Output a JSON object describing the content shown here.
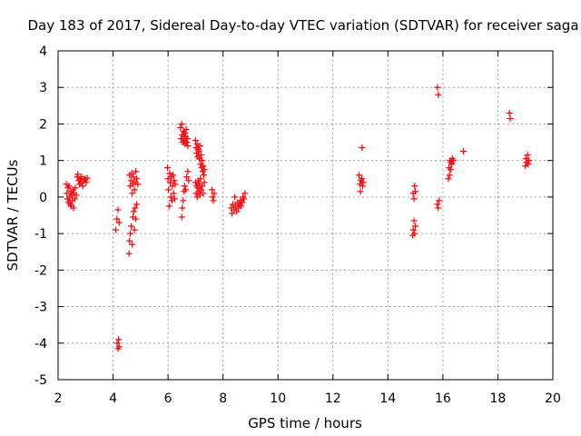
{
  "chart_data": {
    "type": "scatter",
    "title": "Day 183 of 2017, Sidereal Day-to-day VTEC variation (SDTVAR) for receiver saga",
    "xlabel": "GPS time / hours",
    "ylabel": "SDTVAR / TECUs",
    "xlim": [
      2,
      20
    ],
    "ylim": [
      -5,
      4
    ],
    "xticks": [
      2,
      4,
      6,
      8,
      10,
      12,
      14,
      16,
      18,
      20
    ],
    "yticks": [
      -5,
      -4,
      -3,
      -2,
      -1,
      0,
      1,
      2,
      3,
      4
    ],
    "xtick_labels": [
      "2",
      "4",
      "6",
      "8",
      "10",
      "12",
      "14",
      "16",
      "18",
      "20"
    ],
    "ytick_labels": [
      "-5",
      "-4",
      "-3",
      "-2",
      "-1",
      "0",
      "1",
      "2",
      "3",
      "4"
    ],
    "grid": true,
    "marker": "+",
    "color": "#ff0000",
    "series": [
      {
        "name": "SDTVAR",
        "points": [
          [
            2.3,
            0.35
          ],
          [
            2.32,
            0.1
          ],
          [
            2.34,
            -0.05
          ],
          [
            2.36,
            0.25
          ],
          [
            2.38,
            -0.15
          ],
          [
            2.4,
            0.3
          ],
          [
            2.42,
            0.0
          ],
          [
            2.44,
            -0.2
          ],
          [
            2.46,
            0.15
          ],
          [
            2.48,
            -0.25
          ],
          [
            2.5,
            0.05
          ],
          [
            2.52,
            -0.1
          ],
          [
            2.54,
            0.2
          ],
          [
            2.56,
            -0.3
          ],
          [
            2.58,
            0.1
          ],
          [
            2.6,
            -0.05
          ],
          [
            2.62,
            0.25
          ],
          [
            2.66,
            0.05
          ],
          [
            2.7,
            0.55
          ],
          [
            2.72,
            0.62
          ],
          [
            2.75,
            0.45
          ],
          [
            2.78,
            0.35
          ],
          [
            2.8,
            0.5
          ],
          [
            2.83,
            0.4
          ],
          [
            2.86,
            0.55
          ],
          [
            2.9,
            0.3
          ],
          [
            2.94,
            0.45
          ],
          [
            2.98,
            0.5
          ],
          [
            3.02,
            0.4
          ],
          [
            3.06,
            0.52
          ],
          [
            4.1,
            -0.9
          ],
          [
            4.14,
            -0.6
          ],
          [
            4.18,
            -0.35
          ],
          [
            4.22,
            -0.7
          ],
          [
            4.15,
            -4.0
          ],
          [
            4.18,
            -4.15
          ],
          [
            4.2,
            -3.9
          ],
          [
            4.22,
            -4.1
          ],
          [
            4.58,
            -1.55
          ],
          [
            4.6,
            -1.2
          ],
          [
            4.63,
            -1.0
          ],
          [
            4.66,
            -0.8
          ],
          [
            4.7,
            -1.3
          ],
          [
            4.72,
            -0.55
          ],
          [
            4.75,
            -0.4
          ],
          [
            4.78,
            -0.9
          ],
          [
            4.8,
            -0.3
          ],
          [
            4.83,
            -0.6
          ],
          [
            4.86,
            -0.2
          ],
          [
            4.6,
            0.6
          ],
          [
            4.62,
            0.3
          ],
          [
            4.65,
            0.45
          ],
          [
            4.68,
            0.65
          ],
          [
            4.7,
            0.1
          ],
          [
            4.72,
            0.35
          ],
          [
            4.75,
            0.55
          ],
          [
            4.78,
            0.2
          ],
          [
            4.8,
            0.4
          ],
          [
            4.83,
            0.7
          ],
          [
            4.86,
            0.5
          ],
          [
            4.9,
            0.35
          ],
          [
            5.98,
            0.8
          ],
          [
            6.0,
            0.5
          ],
          [
            6.02,
            0.2
          ],
          [
            6.04,
            -0.25
          ],
          [
            6.06,
            0.65
          ],
          [
            6.08,
            0.4
          ],
          [
            6.1,
            0.0
          ],
          [
            6.12,
            0.55
          ],
          [
            6.14,
            -0.1
          ],
          [
            6.16,
            0.3
          ],
          [
            6.18,
            0.6
          ],
          [
            6.2,
            0.1
          ],
          [
            6.22,
            0.45
          ],
          [
            6.24,
            -0.05
          ],
          [
            6.26,
            0.35
          ],
          [
            6.45,
            1.9
          ],
          [
            6.48,
            1.6
          ],
          [
            6.5,
            2.0
          ],
          [
            6.52,
            1.7
          ],
          [
            6.54,
            1.5
          ],
          [
            6.56,
            1.8
          ],
          [
            6.58,
            1.55
          ],
          [
            6.6,
            1.75
          ],
          [
            6.62,
            1.45
          ],
          [
            6.64,
            1.65
          ],
          [
            6.66,
            1.85
          ],
          [
            6.68,
            1.5
          ],
          [
            6.7,
            1.6
          ],
          [
            6.72,
            1.4
          ],
          [
            6.5,
            -0.55
          ],
          [
            6.52,
            -0.3
          ],
          [
            6.55,
            -0.1
          ],
          [
            6.58,
            0.15
          ],
          [
            6.6,
            0.3
          ],
          [
            6.64,
            0.2
          ],
          [
            6.68,
            0.55
          ],
          [
            6.72,
            0.7
          ],
          [
            6.75,
            0.45
          ],
          [
            7.0,
            1.55
          ],
          [
            7.02,
            1.35
          ],
          [
            7.04,
            1.2
          ],
          [
            7.06,
            1.45
          ],
          [
            7.08,
            1.1
          ],
          [
            7.1,
            1.3
          ],
          [
            7.12,
            1.25
          ],
          [
            7.14,
            1.05
          ],
          [
            7.16,
            1.4
          ],
          [
            7.18,
            0.9
          ],
          [
            7.2,
            1.15
          ],
          [
            7.22,
            0.8
          ],
          [
            7.24,
            1.0
          ],
          [
            7.26,
            0.7
          ],
          [
            7.28,
            0.85
          ],
          [
            7.3,
            0.6
          ],
          [
            7.32,
            0.75
          ],
          [
            7.0,
            0.4
          ],
          [
            7.02,
            0.1
          ],
          [
            7.04,
            0.3
          ],
          [
            7.06,
            0.0
          ],
          [
            7.08,
            0.25
          ],
          [
            7.1,
            0.45
          ],
          [
            7.12,
            0.15
          ],
          [
            7.14,
            0.35
          ],
          [
            7.16,
            0.05
          ],
          [
            7.18,
            0.5
          ],
          [
            7.2,
            0.2
          ],
          [
            7.24,
            0.3
          ],
          [
            7.28,
            0.1
          ],
          [
            7.32,
            0.4
          ],
          [
            7.6,
            0.2
          ],
          [
            7.62,
            0.0
          ],
          [
            7.65,
            -0.1
          ],
          [
            7.68,
            0.1
          ],
          [
            8.3,
            -0.3
          ],
          [
            8.33,
            -0.45
          ],
          [
            8.36,
            -0.2
          ],
          [
            8.4,
            -0.35
          ],
          [
            8.43,
            0.0
          ],
          [
            8.46,
            -0.25
          ],
          [
            8.5,
            -0.4
          ],
          [
            8.53,
            -0.15
          ],
          [
            8.56,
            -0.3
          ],
          [
            8.6,
            -0.2
          ],
          [
            8.63,
            -0.1
          ],
          [
            8.66,
            -0.25
          ],
          [
            8.7,
            -0.15
          ],
          [
            8.73,
            0.0
          ],
          [
            8.76,
            -0.05
          ],
          [
            8.8,
            0.1
          ],
          [
            12.95,
            0.6
          ],
          [
            12.98,
            0.35
          ],
          [
            13.0,
            0.15
          ],
          [
            13.02,
            0.45
          ],
          [
            13.05,
            0.5
          ],
          [
            13.08,
            0.3
          ],
          [
            13.1,
            0.4
          ],
          [
            13.06,
            1.35
          ],
          [
            14.9,
            -1.05
          ],
          [
            14.92,
            -0.9
          ],
          [
            14.95,
            -0.65
          ],
          [
            14.97,
            -1.0
          ],
          [
            15.0,
            -0.8
          ],
          [
            14.92,
            0.1
          ],
          [
            14.95,
            -0.05
          ],
          [
            14.97,
            0.3
          ],
          [
            15.0,
            0.15
          ],
          [
            15.8,
            3.0
          ],
          [
            15.83,
            2.8
          ],
          [
            15.8,
            -0.2
          ],
          [
            15.83,
            -0.3
          ],
          [
            15.86,
            -0.1
          ],
          [
            16.2,
            0.5
          ],
          [
            16.22,
            0.8
          ],
          [
            16.24,
            0.6
          ],
          [
            16.26,
            1.0
          ],
          [
            16.28,
            0.75
          ],
          [
            16.3,
            0.95
          ],
          [
            16.32,
            0.9
          ],
          [
            16.34,
            1.05
          ],
          [
            16.38,
            1.0
          ],
          [
            16.75,
            1.25
          ],
          [
            18.42,
            2.3
          ],
          [
            18.45,
            2.15
          ],
          [
            19.0,
            0.85
          ],
          [
            19.02,
            1.05
          ],
          [
            19.05,
            0.95
          ],
          [
            19.08,
            1.15
          ],
          [
            19.1,
            0.9
          ],
          [
            19.13,
            1.0
          ]
        ]
      }
    ]
  }
}
